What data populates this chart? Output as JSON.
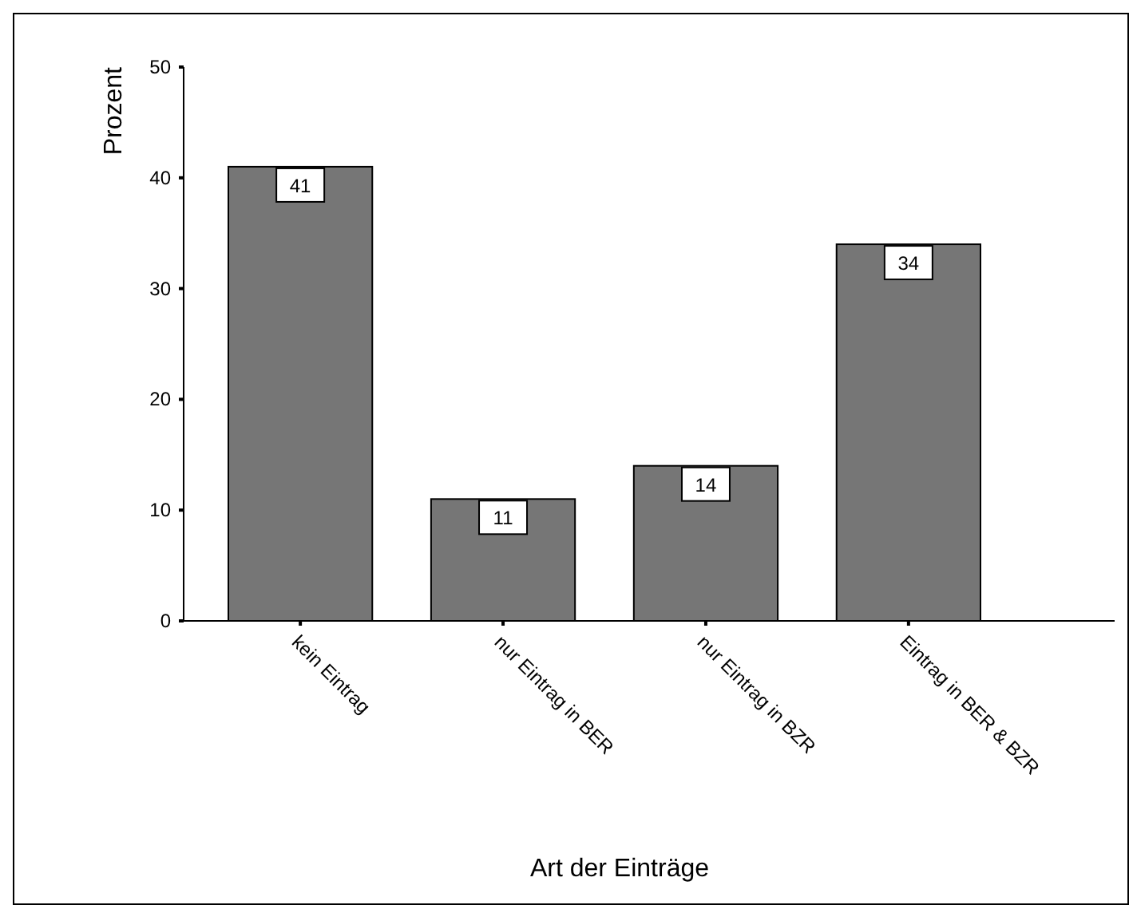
{
  "chart_data": {
    "type": "bar",
    "xlabel": "Art der Einträge",
    "ylabel": "Prozent",
    "categories": [
      "kein Eintrag",
      "nur Eintrag in BER",
      "nur Eintrag in BZR",
      "Eintrag in BER & BZR"
    ],
    "values": [
      41,
      11,
      14,
      34
    ],
    "color": "#767676",
    "ylim": [
      0,
      50
    ],
    "yticks": [
      0,
      10,
      20,
      30,
      40,
      50
    ],
    "data_labels": true
  }
}
